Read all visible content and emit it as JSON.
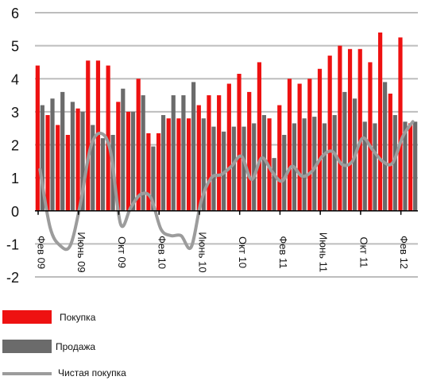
{
  "chart_data": {
    "type": "bar",
    "colors": {
      "buy": "#ee1111",
      "sell": "#6b6b6b",
      "net": "#9c9c9c",
      "grid": "#bdbdbd"
    },
    "ylim": [
      -2,
      6
    ],
    "yticks": [
      -2,
      -1,
      0,
      1,
      2,
      3,
      4,
      5,
      6
    ],
    "grid": true,
    "n_periods": 38,
    "xtick_labels": [
      {
        "label": "Фев 09",
        "index": 0
      },
      {
        "label": "Июнь 09",
        "index": 4
      },
      {
        "label": "Окт 09",
        "index": 8
      },
      {
        "label": "Фев 10",
        "index": 12
      },
      {
        "label": "Июнь 10",
        "index": 16
      },
      {
        "label": "Окт 10",
        "index": 20
      },
      {
        "label": "Фев 11",
        "index": 24
      },
      {
        "label": "Июнь 11",
        "index": 28
      },
      {
        "label": "Окт 11",
        "index": 32
      },
      {
        "label": "Фев 12",
        "index": 36
      }
    ],
    "series": [
      {
        "name": "Покупка",
        "type": "bar",
        "values": [
          4.4,
          2.9,
          2.6,
          2.3,
          3.1,
          4.55,
          4.55,
          4.4,
          3.3,
          3.0,
          4.0,
          2.35,
          2.35,
          2.8,
          2.8,
          2.8,
          3.2,
          3.5,
          3.5,
          3.85,
          4.15,
          3.6,
          4.5,
          2.8,
          3.2,
          4.0,
          3.85,
          4.0,
          4.3,
          4.7,
          5.0,
          4.9,
          4.9,
          4.5,
          5.4,
          3.55,
          5.25,
          2.65
        ]
      },
      {
        "name": "Продажа",
        "type": "bar",
        "values": [
          3.2,
          3.4,
          3.6,
          3.3,
          3.0,
          2.6,
          2.2,
          2.3,
          3.7,
          3.0,
          3.5,
          1.95,
          2.9,
          3.5,
          3.5,
          3.9,
          2.8,
          2.55,
          2.4,
          2.55,
          2.55,
          2.65,
          2.9,
          1.6,
          2.3,
          2.65,
          2.8,
          2.85,
          2.65,
          2.9,
          3.6,
          3.4,
          2.7,
          2.65,
          3.9,
          2.9,
          2.7,
          2.7
        ]
      },
      {
        "name": "Чистая покупка",
        "type": "line",
        "values": [
          1.25,
          -0.5,
          -1.05,
          -1.05,
          0.2,
          1.9,
          2.35,
          1.8,
          -0.4,
          0.1,
          0.5,
          0.4,
          -0.55,
          -0.75,
          -0.75,
          -1.1,
          0.3,
          1.0,
          1.1,
          1.35,
          1.65,
          0.95,
          1.6,
          1.2,
          0.9,
          1.35,
          1.05,
          1.2,
          1.65,
          1.8,
          1.4,
          1.5,
          2.2,
          1.85,
          1.5,
          1.45,
          2.25,
          2.7
        ]
      }
    ]
  },
  "legend": [
    {
      "label": "Покупка",
      "kind": "bar",
      "color": "#ee1111"
    },
    {
      "label": "Продажа",
      "kind": "bar",
      "color": "#6b6b6b"
    },
    {
      "label": "Чистая покупка",
      "kind": "line",
      "color": "#9c9c9c"
    }
  ]
}
